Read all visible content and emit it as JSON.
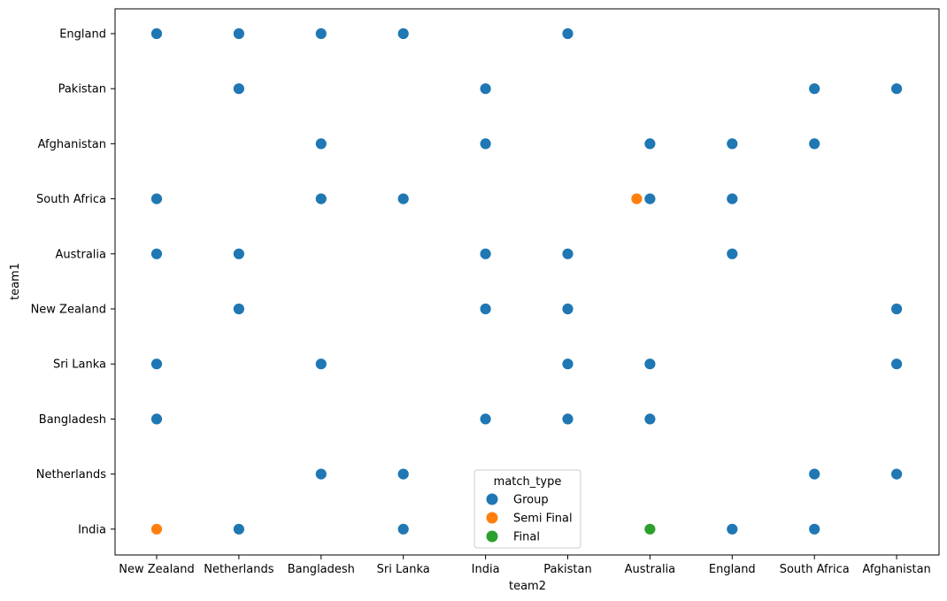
{
  "chart_data": {
    "type": "scatter",
    "xlabel": "team2",
    "ylabel": "team1",
    "x_categories": [
      "New Zealand",
      "Netherlands",
      "Bangladesh",
      "Sri Lanka",
      "India",
      "Pakistan",
      "Australia",
      "England",
      "South Africa",
      "Afghanistan"
    ],
    "y_categories": [
      "England",
      "Pakistan",
      "Afghanistan",
      "South Africa",
      "Australia",
      "New Zealand",
      "Sri Lanka",
      "Bangladesh",
      "Netherlands",
      "India"
    ],
    "legend": {
      "title": "match_type",
      "placement": "lower-center",
      "entries": [
        "Group",
        "Semi Final",
        "Final"
      ]
    },
    "colors": {
      "Group": "#1f77b4",
      "Semi Final": "#ff7f0e",
      "Final": "#2ca02c"
    },
    "grid": false,
    "points": [
      {
        "team1": "England",
        "team2": "New Zealand",
        "match_type": "Group"
      },
      {
        "team1": "England",
        "team2": "Netherlands",
        "match_type": "Group"
      },
      {
        "team1": "England",
        "team2": "Bangladesh",
        "match_type": "Group"
      },
      {
        "team1": "England",
        "team2": "Sri Lanka",
        "match_type": "Group"
      },
      {
        "team1": "England",
        "team2": "Pakistan",
        "match_type": "Group"
      },
      {
        "team1": "Pakistan",
        "team2": "Netherlands",
        "match_type": "Group"
      },
      {
        "team1": "Pakistan",
        "team2": "India",
        "match_type": "Group"
      },
      {
        "team1": "Pakistan",
        "team2": "South Africa",
        "match_type": "Group"
      },
      {
        "team1": "Pakistan",
        "team2": "Afghanistan",
        "match_type": "Group"
      },
      {
        "team1": "Afghanistan",
        "team2": "Bangladesh",
        "match_type": "Group"
      },
      {
        "team1": "Afghanistan",
        "team2": "India",
        "match_type": "Group"
      },
      {
        "team1": "Afghanistan",
        "team2": "Australia",
        "match_type": "Group"
      },
      {
        "team1": "Afghanistan",
        "team2": "England",
        "match_type": "Group"
      },
      {
        "team1": "Afghanistan",
        "team2": "South Africa",
        "match_type": "Group"
      },
      {
        "team1": "South Africa",
        "team2": "New Zealand",
        "match_type": "Group"
      },
      {
        "team1": "South Africa",
        "team2": "Bangladesh",
        "match_type": "Group"
      },
      {
        "team1": "South Africa",
        "team2": "Sri Lanka",
        "match_type": "Group"
      },
      {
        "team1": "South Africa",
        "team2": "Australia",
        "match_type": "Semi Final"
      },
      {
        "team1": "South Africa",
        "team2": "Australia",
        "match_type": "Group"
      },
      {
        "team1": "South Africa",
        "team2": "England",
        "match_type": "Group"
      },
      {
        "team1": "Australia",
        "team2": "New Zealand",
        "match_type": "Group"
      },
      {
        "team1": "Australia",
        "team2": "Netherlands",
        "match_type": "Group"
      },
      {
        "team1": "Australia",
        "team2": "India",
        "match_type": "Group"
      },
      {
        "team1": "Australia",
        "team2": "Pakistan",
        "match_type": "Group"
      },
      {
        "team1": "Australia",
        "team2": "England",
        "match_type": "Group"
      },
      {
        "team1": "New Zealand",
        "team2": "Netherlands",
        "match_type": "Group"
      },
      {
        "team1": "New Zealand",
        "team2": "India",
        "match_type": "Group"
      },
      {
        "team1": "New Zealand",
        "team2": "Pakistan",
        "match_type": "Group"
      },
      {
        "team1": "New Zealand",
        "team2": "Afghanistan",
        "match_type": "Group"
      },
      {
        "team1": "Sri Lanka",
        "team2": "New Zealand",
        "match_type": "Group"
      },
      {
        "team1": "Sri Lanka",
        "team2": "Bangladesh",
        "match_type": "Group"
      },
      {
        "team1": "Sri Lanka",
        "team2": "Pakistan",
        "match_type": "Group"
      },
      {
        "team1": "Sri Lanka",
        "team2": "Australia",
        "match_type": "Group"
      },
      {
        "team1": "Sri Lanka",
        "team2": "Afghanistan",
        "match_type": "Group"
      },
      {
        "team1": "Bangladesh",
        "team2": "New Zealand",
        "match_type": "Group"
      },
      {
        "team1": "Bangladesh",
        "team2": "India",
        "match_type": "Group"
      },
      {
        "team1": "Bangladesh",
        "team2": "Pakistan",
        "match_type": "Group"
      },
      {
        "team1": "Bangladesh",
        "team2": "Australia",
        "match_type": "Group"
      },
      {
        "team1": "Netherlands",
        "team2": "Bangladesh",
        "match_type": "Group"
      },
      {
        "team1": "Netherlands",
        "team2": "Sri Lanka",
        "match_type": "Group"
      },
      {
        "team1": "Netherlands",
        "team2": "South Africa",
        "match_type": "Group"
      },
      {
        "team1": "Netherlands",
        "team2": "Afghanistan",
        "match_type": "Group"
      },
      {
        "team1": "India",
        "team2": "New Zealand",
        "match_type": "Semi Final"
      },
      {
        "team1": "India",
        "team2": "Netherlands",
        "match_type": "Group"
      },
      {
        "team1": "India",
        "team2": "Sri Lanka",
        "match_type": "Group"
      },
      {
        "team1": "India",
        "team2": "Australia",
        "match_type": "Final"
      },
      {
        "team1": "India",
        "team2": "England",
        "match_type": "Group"
      },
      {
        "team1": "India",
        "team2": "South Africa",
        "match_type": "Group"
      }
    ]
  }
}
